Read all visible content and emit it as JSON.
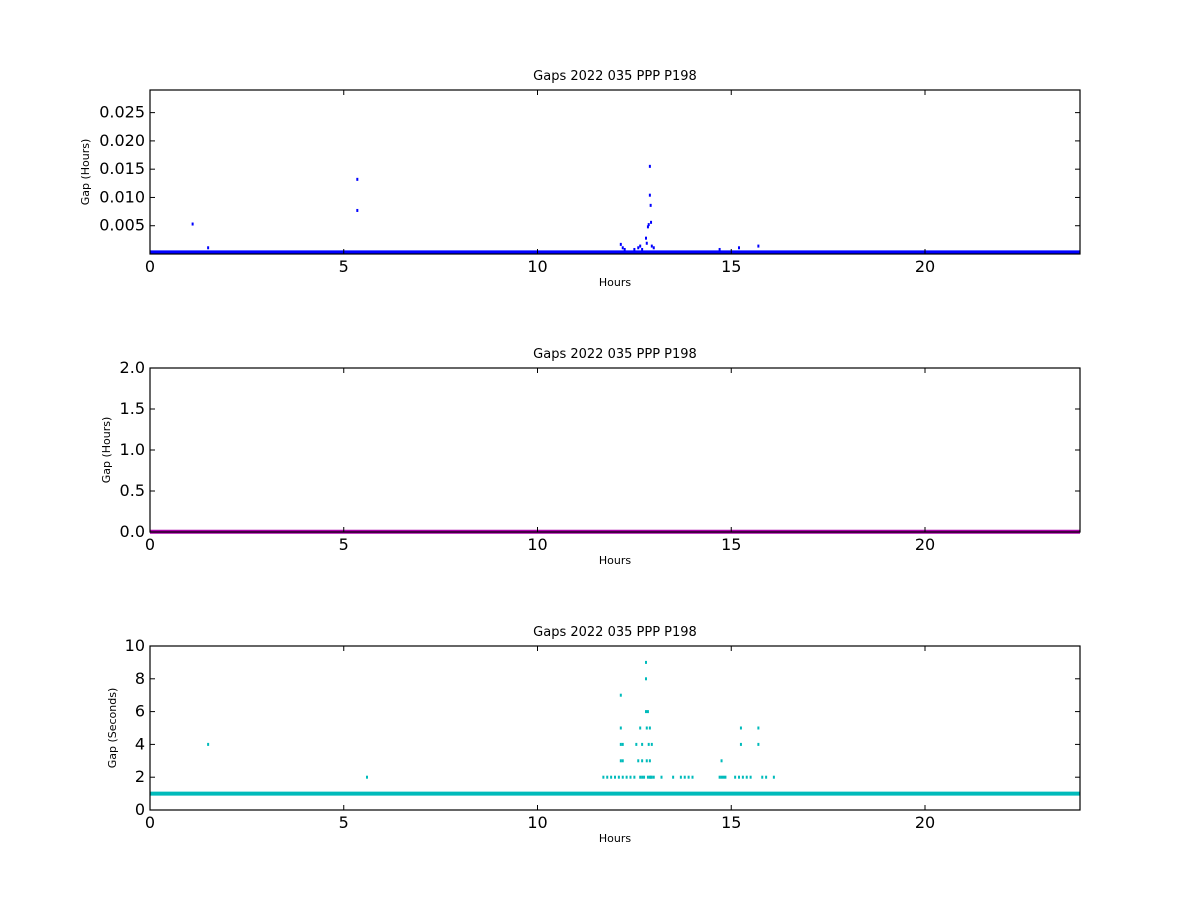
{
  "chart_data": [
    {
      "type": "scatter",
      "title": "Gaps 2022 035 PPP  P198",
      "xlabel": "Hours",
      "ylabel": "Gap (Hours)",
      "xlim": [
        0,
        24
      ],
      "ylim": [
        0,
        0.029
      ],
      "xticks": [
        0,
        5,
        10,
        15,
        20
      ],
      "yticks": [
        0.005,
        0.01,
        0.015,
        0.02,
        0.025
      ],
      "ytick_labels": [
        "0.005",
        "0.010",
        "0.015",
        "0.020",
        "0.025"
      ],
      "color": "#0000ff",
      "baseline": {
        "y": 0.00028,
        "x_range": [
          0,
          24
        ]
      },
      "series": [
        {
          "x": [
            1.1,
            1.5,
            5.35,
            5.35,
            12.15,
            12.2,
            12.25,
            12.5,
            12.6,
            12.65,
            12.7,
            12.8,
            12.82,
            12.85,
            12.87,
            12.9,
            12.9,
            12.92,
            12.93,
            12.95,
            13.0,
            14.7,
            15.2,
            15.7
          ],
          "y": [
            0.0053,
            0.0011,
            0.0132,
            0.0077,
            0.0017,
            0.0011,
            0.0008,
            0.0008,
            0.0011,
            0.0014,
            0.0008,
            0.0028,
            0.0019,
            0.0048,
            0.0052,
            0.0155,
            0.0104,
            0.0086,
            0.0056,
            0.0014,
            0.0011,
            0.0008,
            0.0011,
            0.0014
          ]
        }
      ]
    },
    {
      "type": "scatter",
      "title": "Gaps 2022 035 PPP  P198",
      "xlabel": "Hours",
      "ylabel": "Gap (Hours)",
      "xlim": [
        0,
        24
      ],
      "ylim": [
        0,
        2.0
      ],
      "xticks": [
        0,
        5,
        10,
        15,
        20
      ],
      "yticks": [
        0.0,
        0.5,
        1.0,
        1.5,
        2.0
      ],
      "ytick_labels": [
        "0.0",
        "0.5",
        "1.0",
        "1.5",
        "2.0"
      ],
      "color": "#aa00aa",
      "baseline": {
        "y": 0.003,
        "x_range": [
          0,
          24
        ]
      },
      "series": [
        {
          "x": [],
          "y": []
        }
      ]
    },
    {
      "type": "scatter",
      "title": "Gaps 2022 035 PPP  P198",
      "xlabel": "Hours",
      "ylabel": "Gap (Seconds)",
      "xlim": [
        0,
        24
      ],
      "ylim": [
        0,
        10
      ],
      "xticks": [
        0,
        5,
        10,
        15,
        20
      ],
      "yticks": [
        0,
        2,
        4,
        6,
        8,
        10
      ],
      "ytick_labels": [
        "0",
        "2",
        "4",
        "6",
        "8",
        "10"
      ],
      "color": "#00bbbb",
      "baseline": {
        "y": 1,
        "x_range": [
          0,
          24
        ]
      },
      "series": [
        {
          "x": [
            1.5,
            5.6,
            11.7,
            11.8,
            11.9,
            12.0,
            12.1,
            12.15,
            12.15,
            12.15,
            12.15,
            12.2,
            12.2,
            12.2,
            12.3,
            12.4,
            12.5,
            12.55,
            12.6,
            12.65,
            12.65,
            12.7,
            12.7,
            12.7,
            12.75,
            12.8,
            12.8,
            12.8,
            12.82,
            12.82,
            12.85,
            12.85,
            12.87,
            12.9,
            12.9,
            12.9,
            12.92,
            12.95,
            12.95,
            13.0,
            13.2,
            13.5,
            13.7,
            13.8,
            13.9,
            14.0,
            14.7,
            14.75,
            14.8,
            14.85,
            14.75,
            15.1,
            15.2,
            15.25,
            15.25,
            15.3,
            15.4,
            15.5,
            15.7,
            15.7,
            15.8,
            15.9,
            16.1
          ],
          "y": [
            4,
            2,
            2,
            2,
            2,
            2,
            2,
            7,
            5,
            4,
            3,
            2,
            3,
            4,
            2,
            2,
            2,
            4,
            3,
            5,
            2,
            3,
            2,
            4,
            2,
            9,
            8,
            6,
            5,
            3,
            2,
            6,
            4,
            3,
            2,
            5,
            2,
            4,
            2,
            2,
            2,
            2,
            2,
            2,
            2,
            2,
            2,
            2,
            2,
            2,
            3,
            2,
            2,
            5,
            4,
            2,
            2,
            2,
            5,
            4,
            2,
            2,
            2
          ]
        }
      ]
    }
  ]
}
